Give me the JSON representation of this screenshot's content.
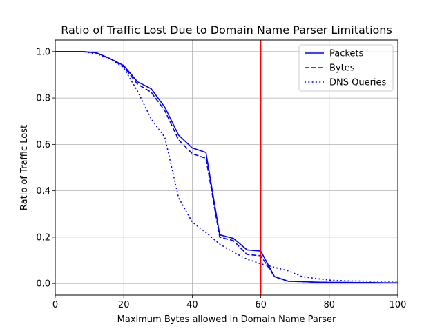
{
  "chart_data": {
    "type": "line",
    "title": "Ratio of Traffic Lost Due to Domain Name Parser Limitations",
    "xlabel": "Maximum Bytes allowed in Domain Name Parser",
    "ylabel": "Ratio of Traffic Lost",
    "xlim": [
      0,
      100
    ],
    "ylim": [
      -0.05,
      1.05
    ],
    "xticks": [
      0,
      20,
      40,
      60,
      80,
      100
    ],
    "yticks": [
      0.0,
      0.2,
      0.4,
      0.6,
      0.8,
      1.0
    ],
    "xtick_labels": [
      "0",
      "20",
      "40",
      "60",
      "80",
      "100"
    ],
    "ytick_labels": [
      "0.0",
      "0.2",
      "0.4",
      "0.6",
      "0.8",
      "1.0"
    ],
    "grid": true,
    "legend_position": "top-right",
    "vline": {
      "x": 60,
      "color": "#ff0000"
    },
    "series": [
      {
        "name": "Packets",
        "style": "solid",
        "color": "#0000ff",
        "x": [
          0,
          4,
          8,
          12,
          16,
          20,
          24,
          28,
          32,
          36,
          40,
          44,
          48,
          52,
          56,
          60,
          64,
          68,
          72,
          76,
          80,
          84,
          88,
          92,
          96,
          100
        ],
        "y": [
          1.0,
          1.0,
          1.0,
          0.995,
          0.97,
          0.94,
          0.87,
          0.84,
          0.76,
          0.64,
          0.585,
          0.565,
          0.21,
          0.195,
          0.145,
          0.14,
          0.03,
          0.01,
          0.008,
          0.006,
          0.005,
          0.005,
          0.004,
          0.004,
          0.003,
          0.003
        ]
      },
      {
        "name": "Bytes",
        "style": "dashed",
        "color": "#0000ff",
        "x": [
          0,
          4,
          8,
          12,
          16,
          20,
          24,
          28,
          32,
          36,
          40,
          44,
          48,
          52,
          56,
          60,
          64,
          68,
          72,
          76,
          80,
          84,
          88,
          92,
          96,
          100
        ],
        "y": [
          1.0,
          1.0,
          1.0,
          0.995,
          0.97,
          0.935,
          0.86,
          0.825,
          0.745,
          0.62,
          0.56,
          0.54,
          0.2,
          0.185,
          0.125,
          0.12,
          0.03,
          0.01,
          0.008,
          0.006,
          0.005,
          0.005,
          0.004,
          0.004,
          0.003,
          0.003
        ]
      },
      {
        "name": "DNS Queries",
        "style": "dotted",
        "color": "#0000ff",
        "x": [
          0,
          4,
          8,
          12,
          16,
          20,
          24,
          28,
          32,
          36,
          40,
          44,
          48,
          52,
          56,
          60,
          64,
          68,
          72,
          76,
          80,
          84,
          88,
          92,
          96,
          100
        ],
        "y": [
          1.0,
          1.0,
          1.0,
          0.99,
          0.97,
          0.93,
          0.83,
          0.71,
          0.63,
          0.37,
          0.265,
          0.22,
          0.17,
          0.135,
          0.105,
          0.085,
          0.07,
          0.055,
          0.03,
          0.022,
          0.015,
          0.012,
          0.011,
          0.01,
          0.01,
          0.01
        ]
      }
    ]
  }
}
